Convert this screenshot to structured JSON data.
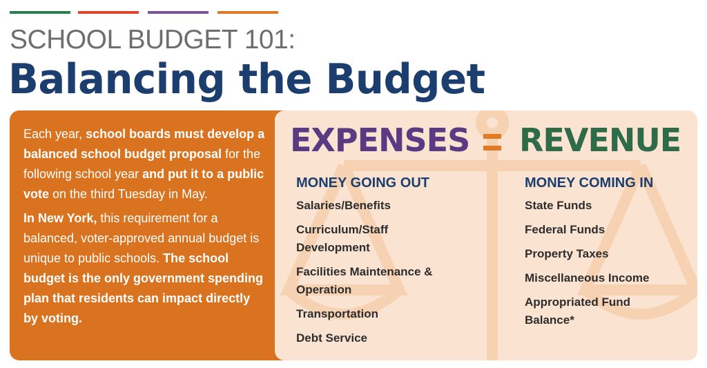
{
  "header": {
    "subtitle": "SCHOOL BUDGET 101:",
    "title": "Balancing the Budget"
  },
  "intro": {
    "paragraphs": [
      [
        {
          "text": "Each year, ",
          "bold": false
        },
        {
          "text": "school boards must develop a balanced school budget proposal",
          "bold": true
        },
        {
          "text": " for the following school year ",
          "bold": false
        },
        {
          "text": "and put it to a public vote",
          "bold": true
        },
        {
          "text": " on the third Tuesday in May.",
          "bold": false
        }
      ],
      [
        {
          "text": "In New York,",
          "bold": true
        },
        {
          "text": " this requirement for a balanced, voter-approved annual budget is unique to public schools. ",
          "bold": false
        },
        {
          "text": "The school budget is the only government spending plan that residents can impact directly by voting.",
          "bold": true
        }
      ]
    ]
  },
  "equation": {
    "left": "EXPENSES",
    "right": "REVENUE"
  },
  "columns": [
    {
      "heading": "MONEY GOING OUT",
      "items": [
        "Salaries/Benefits",
        "Curriculum/Staff Development",
        "Facilities Maintenance & Operation",
        "Transportation",
        "Debt Service"
      ]
    },
    {
      "heading": "MONEY COMING IN",
      "items": [
        "State Funds",
        "Federal Funds",
        "Property Taxes",
        "Miscellaneous Income",
        "Appropriated Fund Balance*"
      ]
    }
  ]
}
